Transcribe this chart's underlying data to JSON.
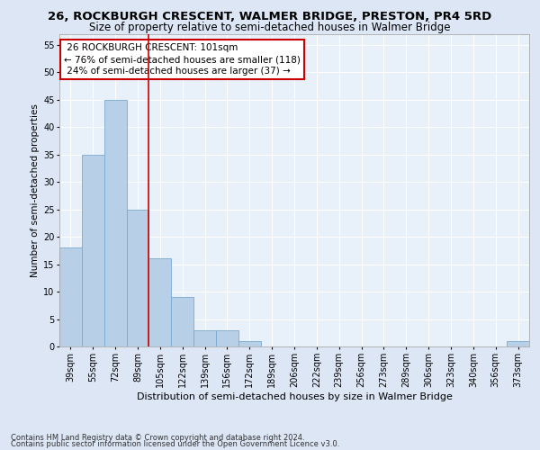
{
  "title": "26, ROCKBURGH CRESCENT, WALMER BRIDGE, PRESTON, PR4 5RD",
  "subtitle": "Size of property relative to semi-detached houses in Walmer Bridge",
  "xlabel": "Distribution of semi-detached houses by size in Walmer Bridge",
  "ylabel": "Number of semi-detached properties",
  "footnote1": "Contains HM Land Registry data © Crown copyright and database right 2024.",
  "footnote2": "Contains public sector information licensed under the Open Government Licence v3.0.",
  "bins": [
    "39sqm",
    "55sqm",
    "72sqm",
    "89sqm",
    "105sqm",
    "122sqm",
    "139sqm",
    "156sqm",
    "172sqm",
    "189sqm",
    "206sqm",
    "222sqm",
    "239sqm",
    "256sqm",
    "273sqm",
    "289sqm",
    "306sqm",
    "323sqm",
    "340sqm",
    "356sqm",
    "373sqm"
  ],
  "bar_values": [
    18,
    35,
    45,
    25,
    16,
    9,
    3,
    3,
    1,
    0,
    0,
    0,
    0,
    0,
    0,
    0,
    0,
    0,
    0,
    0,
    1
  ],
  "bar_color": "#b8cfe8",
  "bar_edge_color": "#7aaad0",
  "red_line_color": "#cc0000",
  "annotation_box_color": "#cc0000",
  "property_label": "26 ROCKBURGH CRESCENT: 101sqm",
  "pct_smaller": 76,
  "pct_smaller_count": 118,
  "pct_larger": 24,
  "pct_larger_count": 37,
  "red_line_x": 3.5,
  "ylim": [
    0,
    57
  ],
  "yticks": [
    0,
    5,
    10,
    15,
    20,
    25,
    30,
    35,
    40,
    45,
    50,
    55
  ],
  "bg_color": "#dce6f5",
  "plot_bg_color": "#e8f0fa",
  "grid_color": "#ffffff",
  "title_fontsize": 9.5,
  "subtitle_fontsize": 8.5,
  "ylabel_fontsize": 7.5,
  "xlabel_fontsize": 8,
  "tick_fontsize": 7,
  "annot_fontsize": 7.5,
  "footnote_fontsize": 6
}
